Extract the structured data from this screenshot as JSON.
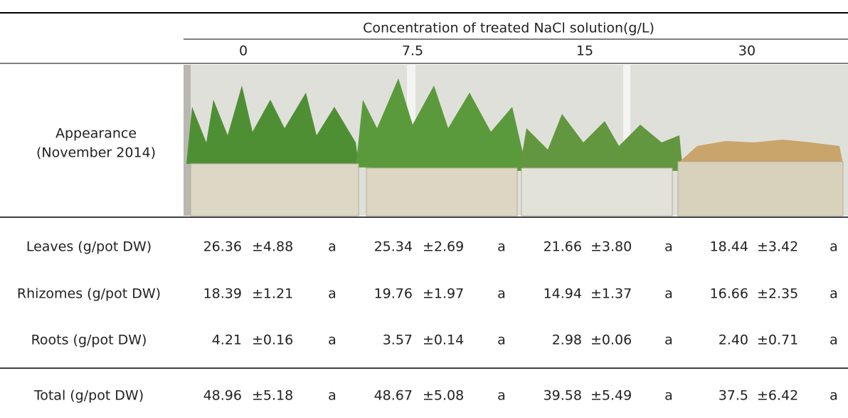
{
  "table": {
    "header": "Concentration of treated NaCl solution(g/L)",
    "columns": [
      "0",
      "7.5",
      "15",
      "30"
    ],
    "appearance": [
      "Appearance",
      "(November 2014)"
    ],
    "rows": [
      {
        "label": "Leaves (g/pot DW)",
        "cells": [
          [
            "26.36",
            "±4.88",
            "a"
          ],
          [
            "25.34",
            "±2.69",
            "a"
          ],
          [
            "21.66",
            "±3.80",
            "a"
          ],
          [
            "18.44",
            "±3.42",
            "a"
          ]
        ]
      },
      {
        "label": "Rhizomes (g/pot DW)",
        "cells": [
          [
            "18.39",
            "±1.21",
            "a"
          ],
          [
            "19.76",
            "±1.97",
            "a"
          ],
          [
            "14.94",
            "±1.37",
            "a"
          ],
          [
            "16.66",
            "±2.35",
            "a"
          ]
        ]
      },
      {
        "label": "Roots (g/pot DW)",
        "cells": [
          [
            "4.21",
            "±0.16",
            "a"
          ],
          [
            "3.57",
            "±0.14",
            "a"
          ],
          [
            "2.98",
            "±0.06",
            "a"
          ],
          [
            "2.40",
            "±0.71",
            "a"
          ]
        ]
      },
      {
        "label": "Total (g/pot DW)",
        "cells": [
          [
            "48.96",
            "±5.18",
            "a"
          ],
          [
            "48.67",
            "±5.08",
            "a"
          ],
          [
            "39.58",
            "±5.49",
            "a"
          ],
          [
            "37.5",
            "±6.42",
            "a"
          ]
        ]
      }
    ]
  }
}
